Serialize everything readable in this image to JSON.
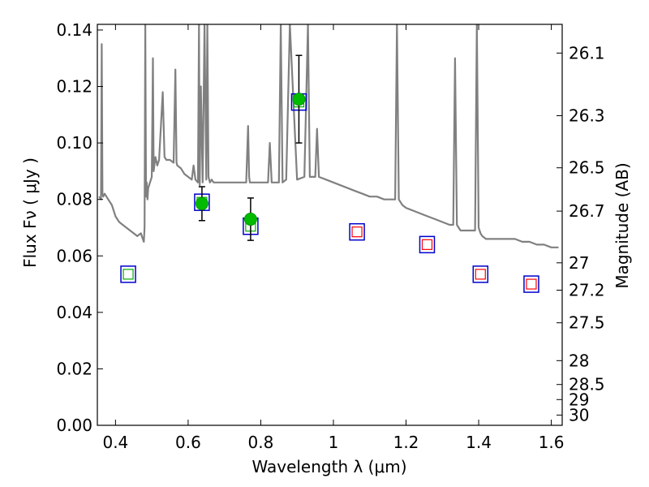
{
  "chart_data": {
    "type": "scatter",
    "xlabel": "Wavelength  λ (μm)",
    "ylabel": "Flux  Fν  ( μJy )",
    "y2label": "Magnitude (AB)",
    "xlim": [
      0.35,
      1.63
    ],
    "ylim": [
      0.0,
      0.142
    ],
    "x_ticks": [
      "0.4",
      "0.6",
      "0.8",
      "1",
      "1.2",
      "1.4",
      "1.6"
    ],
    "x_tick_values": [
      0.4,
      0.6,
      0.8,
      1.0,
      1.2,
      1.4,
      1.6
    ],
    "y_ticks": [
      "0.00",
      "0.02",
      "0.04",
      "0.06",
      "0.08",
      "0.10",
      "0.12",
      "0.14"
    ],
    "y_tick_values": [
      0.0,
      0.02,
      0.04,
      0.06,
      0.08,
      0.1,
      0.12,
      0.14
    ],
    "mag_ticks": [
      "26.1",
      "26.3",
      "26.5",
      "26.7",
      "27",
      "27.2",
      "27.5",
      "28",
      "28.5",
      "29",
      "30"
    ],
    "mag_tick_values": [
      26.1,
      26.3,
      26.5,
      26.7,
      27.0,
      27.2,
      27.5,
      28.0,
      28.5,
      29.0,
      30.0
    ],
    "colors": {
      "spectrum": "#808080",
      "measured": "#00bb00",
      "model_box": "#0000cc",
      "inner_green": "#00aa00",
      "inner_red": "#ff0000"
    },
    "series": [
      {
        "kind": "spectrum",
        "x": [
          0.355,
          0.36,
          0.362,
          0.364,
          0.366,
          0.37,
          0.38,
          0.39,
          0.4,
          0.41,
          0.42,
          0.43,
          0.44,
          0.45,
          0.46,
          0.47,
          0.475,
          0.478,
          0.48,
          0.482,
          0.484,
          0.486,
          0.488,
          0.49,
          0.495,
          0.5,
          0.503,
          0.505,
          0.508,
          0.51,
          0.515,
          0.52,
          0.53,
          0.535,
          0.54,
          0.55,
          0.56,
          0.565,
          0.568,
          0.57,
          0.58,
          0.59,
          0.6,
          0.61,
          0.615,
          0.62,
          0.627,
          0.63,
          0.632,
          0.635,
          0.64,
          0.645,
          0.65,
          0.653,
          0.656,
          0.66,
          0.665,
          0.67,
          0.675,
          0.68,
          0.7,
          0.72,
          0.74,
          0.76,
          0.765,
          0.768,
          0.77,
          0.78,
          0.8,
          0.82,
          0.825,
          0.83,
          0.84,
          0.85,
          0.855,
          0.86,
          0.87,
          0.88,
          0.9,
          0.92,
          0.93,
          0.935,
          0.94,
          0.95,
          0.955,
          0.96,
          0.98,
          1.0,
          1.02,
          1.04,
          1.06,
          1.08,
          1.1,
          1.12,
          1.14,
          1.16,
          1.17,
          1.175,
          1.18,
          1.185,
          1.19,
          1.2,
          1.22,
          1.24,
          1.26,
          1.28,
          1.3,
          1.32,
          1.33,
          1.335,
          1.34,
          1.345,
          1.35,
          1.36,
          1.38,
          1.39,
          1.395,
          1.4,
          1.405,
          1.41,
          1.42,
          1.44,
          1.46,
          1.48,
          1.5,
          1.52,
          1.54,
          1.56,
          1.58,
          1.6,
          1.62
        ],
        "y": [
          0.081,
          0.08,
          0.135,
          0.082,
          0.081,
          0.082,
          0.08,
          0.078,
          0.074,
          0.072,
          0.071,
          0.07,
          0.069,
          0.068,
          0.067,
          0.068,
          0.066,
          0.065,
          0.07,
          0.142,
          0.081,
          0.086,
          0.08,
          0.084,
          0.086,
          0.088,
          0.13,
          0.09,
          0.093,
          0.095,
          0.092,
          0.094,
          0.118,
          0.095,
          0.094,
          0.094,
          0.093,
          0.126,
          0.093,
          0.092,
          0.091,
          0.089,
          0.088,
          0.087,
          0.092,
          0.087,
          0.086,
          0.142,
          0.085,
          0.12,
          0.086,
          0.142,
          0.087,
          0.142,
          0.088,
          0.086,
          0.087,
          0.086,
          0.086,
          0.086,
          0.086,
          0.086,
          0.086,
          0.086,
          0.106,
          0.088,
          0.086,
          0.086,
          0.086,
          0.086,
          0.1,
          0.086,
          0.086,
          0.086,
          0.142,
          0.086,
          0.087,
          0.142,
          0.087,
          0.088,
          0.142,
          0.088,
          0.088,
          0.088,
          0.105,
          0.088,
          0.087,
          0.086,
          0.085,
          0.084,
          0.083,
          0.082,
          0.081,
          0.081,
          0.08,
          0.08,
          0.08,
          0.142,
          0.08,
          0.079,
          0.078,
          0.077,
          0.076,
          0.075,
          0.074,
          0.073,
          0.072,
          0.071,
          0.071,
          0.13,
          0.071,
          0.07,
          0.069,
          0.069,
          0.069,
          0.069,
          0.142,
          0.07,
          0.068,
          0.067,
          0.066,
          0.066,
          0.066,
          0.066,
          0.066,
          0.065,
          0.065,
          0.064,
          0.064,
          0.063,
          0.063
        ]
      },
      {
        "kind": "model",
        "x": [
          0.435,
          0.638,
          0.772,
          0.905,
          1.065,
          1.258,
          1.405,
          1.545
        ],
        "y": [
          0.0535,
          0.079,
          0.0705,
          0.1145,
          0.0685,
          0.064,
          0.0535,
          0.05
        ],
        "inner": [
          "green",
          "green",
          "green",
          "green",
          "red",
          "red",
          "red",
          "red"
        ]
      },
      {
        "kind": "measured",
        "x": [
          0.638,
          0.772,
          0.905
        ],
        "y": [
          0.0785,
          0.073,
          0.1155
        ],
        "err": [
          0.006,
          0.0075,
          0.0155
        ]
      }
    ]
  }
}
